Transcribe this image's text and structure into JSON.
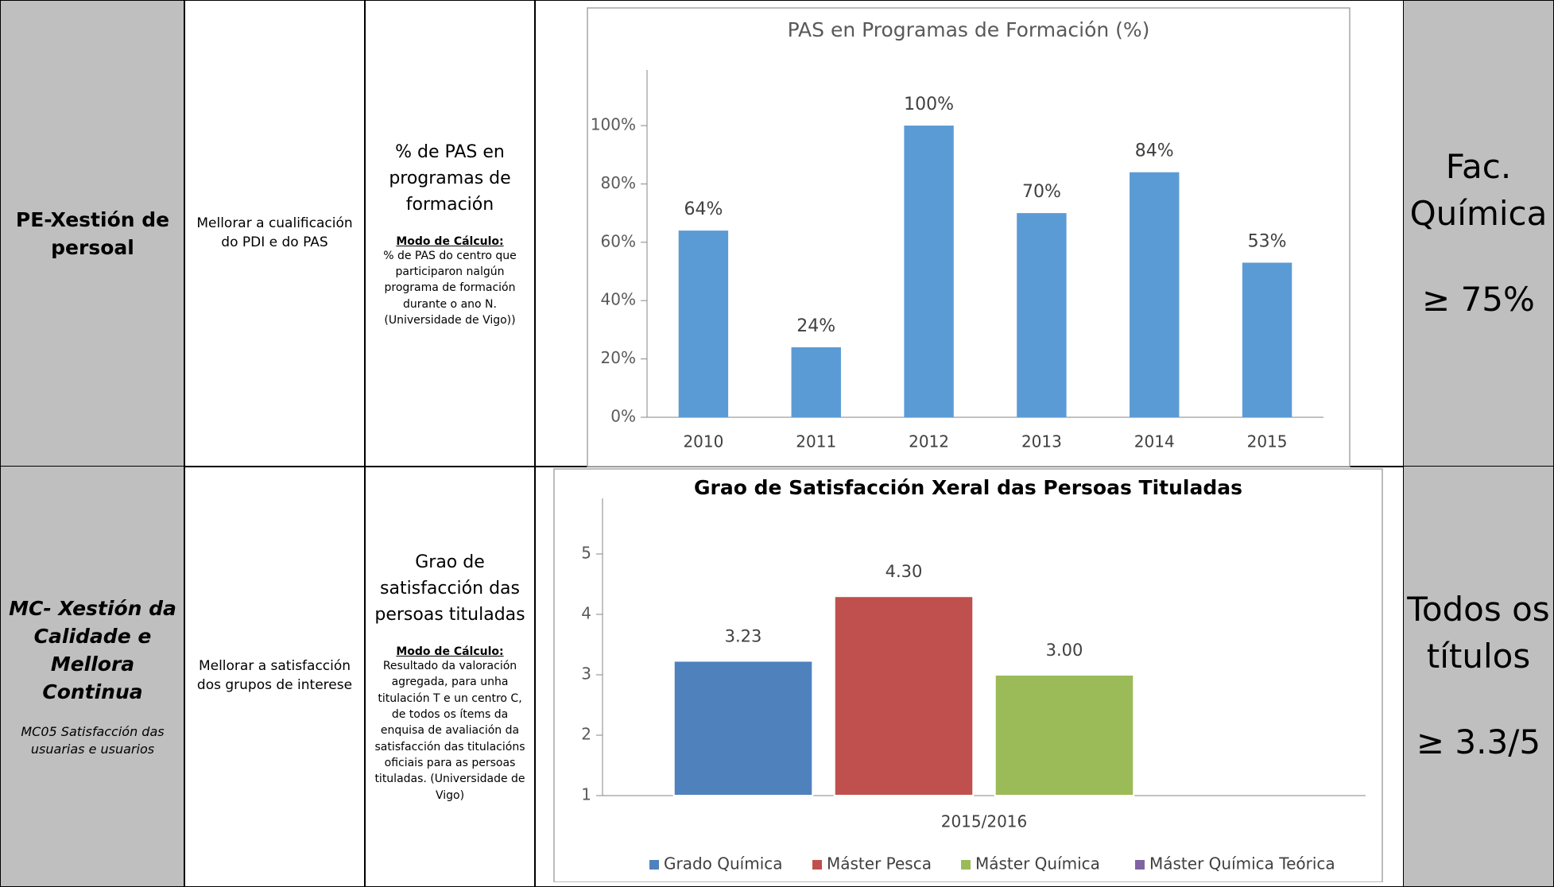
{
  "table": {
    "rows": [
      {
        "area": "PE-Xestión de persoal",
        "objective": "Mellorar a cualificación do PDI  e do PAS",
        "indicator": "% de PAS en programas de formación",
        "method_label": "Modo de Cálculo:",
        "method": "% de PAS do centro que participaron nalgún programa de formación durante o ano N. (Universidade de Vigo))",
        "scope": "Fac. Química",
        "target": "≥ 75%"
      },
      {
        "area": "MC- Xestión da Calidade e Mellora Continua",
        "process": "MC05 Satisfacción das usuarias e usuarios",
        "objective": "Mellorar a satisfacción dos grupos de interese",
        "indicator": "Grao de satisfacción das persoas tituladas",
        "method_label": "Modo de Cálculo:",
        "method": "Resultado da valoración agregada, para unha titulación T e un centro C, de todos os ítems da enquisa de avaliación da satisfacción das titulacións oficiais para as persoas tituladas. (Universidade de Vigo)",
        "scope": "Todos os títulos",
        "target": "≥ 3.3/5"
      }
    ]
  },
  "chart_data": [
    {
      "type": "bar",
      "title": "PAS en Programas de Formación (%)",
      "categories": [
        "2010",
        "2011",
        "2012",
        "2013",
        "2014",
        "2015"
      ],
      "values": [
        64,
        24,
        100,
        70,
        84,
        53
      ],
      "value_labels": [
        "64%",
        "24%",
        "100%",
        "70%",
        "84%",
        "53%"
      ],
      "color": "#5b9bd5",
      "ylim": [
        0,
        100
      ],
      "yticks": [
        {
          "value": 0,
          "label": "0%"
        },
        {
          "value": 20,
          "label": "20%"
        },
        {
          "value": 40,
          "label": "40%"
        },
        {
          "value": 60,
          "label": "60%"
        },
        {
          "value": 80,
          "label": "80%"
        },
        {
          "value": 100,
          "label": "100%"
        }
      ]
    },
    {
      "type": "bar",
      "title": "Grao de Satisfacción Xeral das Persoas Tituladas",
      "categories": [
        "2015/2016"
      ],
      "series": [
        {
          "name": "Grado Química",
          "color": "#4f81bd",
          "values": [
            3.23
          ],
          "value_labels": [
            "3.23"
          ]
        },
        {
          "name": "Máster Pesca",
          "color": "#c0504d",
          "values": [
            4.3
          ],
          "value_labels": [
            "4.30"
          ]
        },
        {
          "name": "Máster Química",
          "color": "#9bbb59",
          "values": [
            3.0
          ],
          "value_labels": [
            "3.00"
          ]
        },
        {
          "name": "Máster Química Teórica",
          "color": "#8064a2",
          "values": [
            null
          ],
          "value_labels": [
            null
          ]
        }
      ],
      "ylim": [
        1,
        5
      ],
      "yticks": [
        1,
        2,
        3,
        4,
        5
      ],
      "legend": "bottom"
    }
  ]
}
